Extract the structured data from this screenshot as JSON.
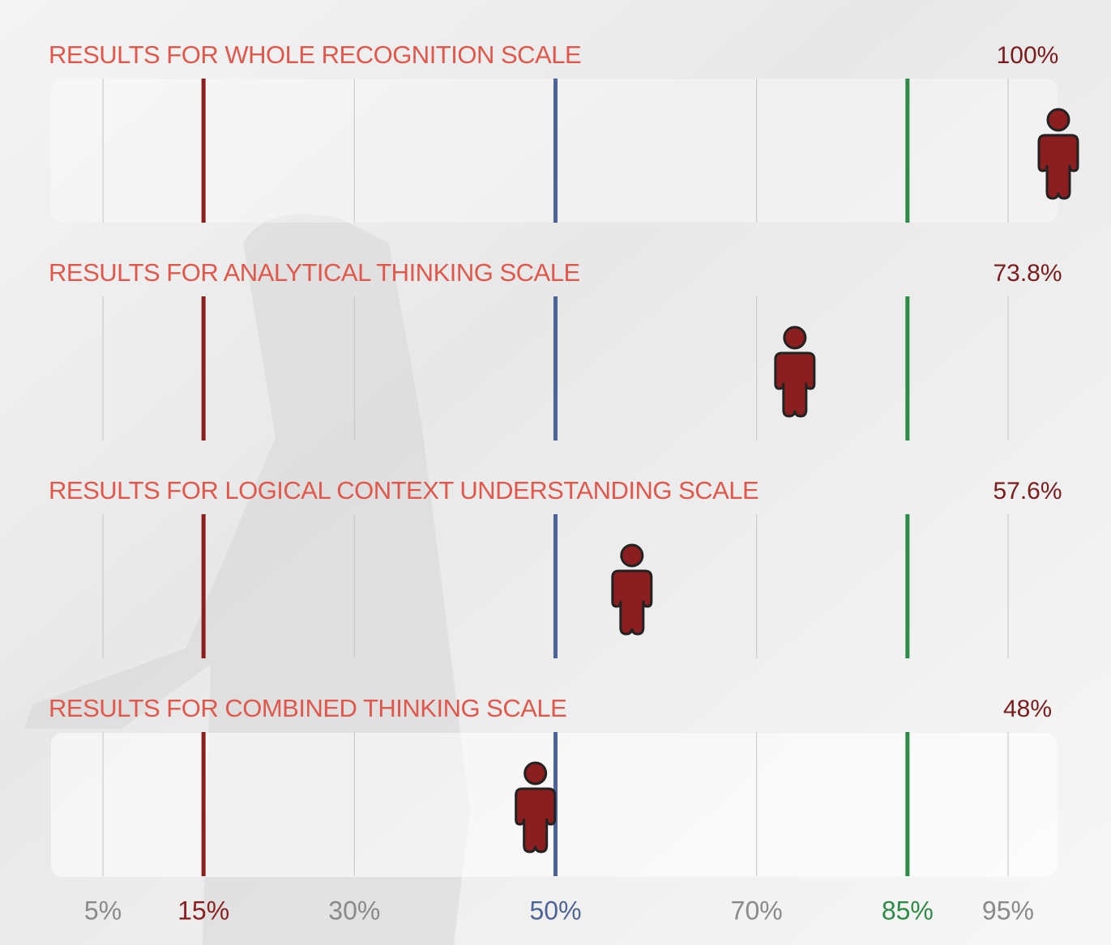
{
  "chart_data": {
    "type": "pictograph",
    "categories": [
      "RESULTS FOR WHOLE RECOGNITION SCALE",
      "RESULTS FOR ANALYTICAL THINKING SCALE",
      "RESULTS FOR LOGICAL CONTEXT UNDERSTANDING SCALE",
      "RESULTS FOR COMBINED THINKING SCALE"
    ],
    "values": [
      100,
      73.8,
      57.6,
      48
    ],
    "value_labels": [
      "100%",
      "73.8%",
      "57.6%",
      "48%"
    ],
    "color": "#8b1f1f",
    "title_color": "#e0584c",
    "value_label_color": "#7a1c1c",
    "xlim": [
      0,
      100
    ],
    "xticks": [
      {
        "value": 5,
        "label": "5%"
      },
      {
        "value": 15,
        "label": "15%",
        "color": "#8b1f1f"
      },
      {
        "value": 30,
        "label": "30%"
      },
      {
        "value": 50,
        "label": "50%",
        "color": "#4f6496"
      },
      {
        "value": 70,
        "label": "70%"
      },
      {
        "value": 85,
        "label": "85%",
        "color": "#2e8b45"
      },
      {
        "value": 95,
        "label": "95%"
      }
    ],
    "grid_color": "#c4c4c4",
    "tick_label_color": "#8a8a8a"
  }
}
